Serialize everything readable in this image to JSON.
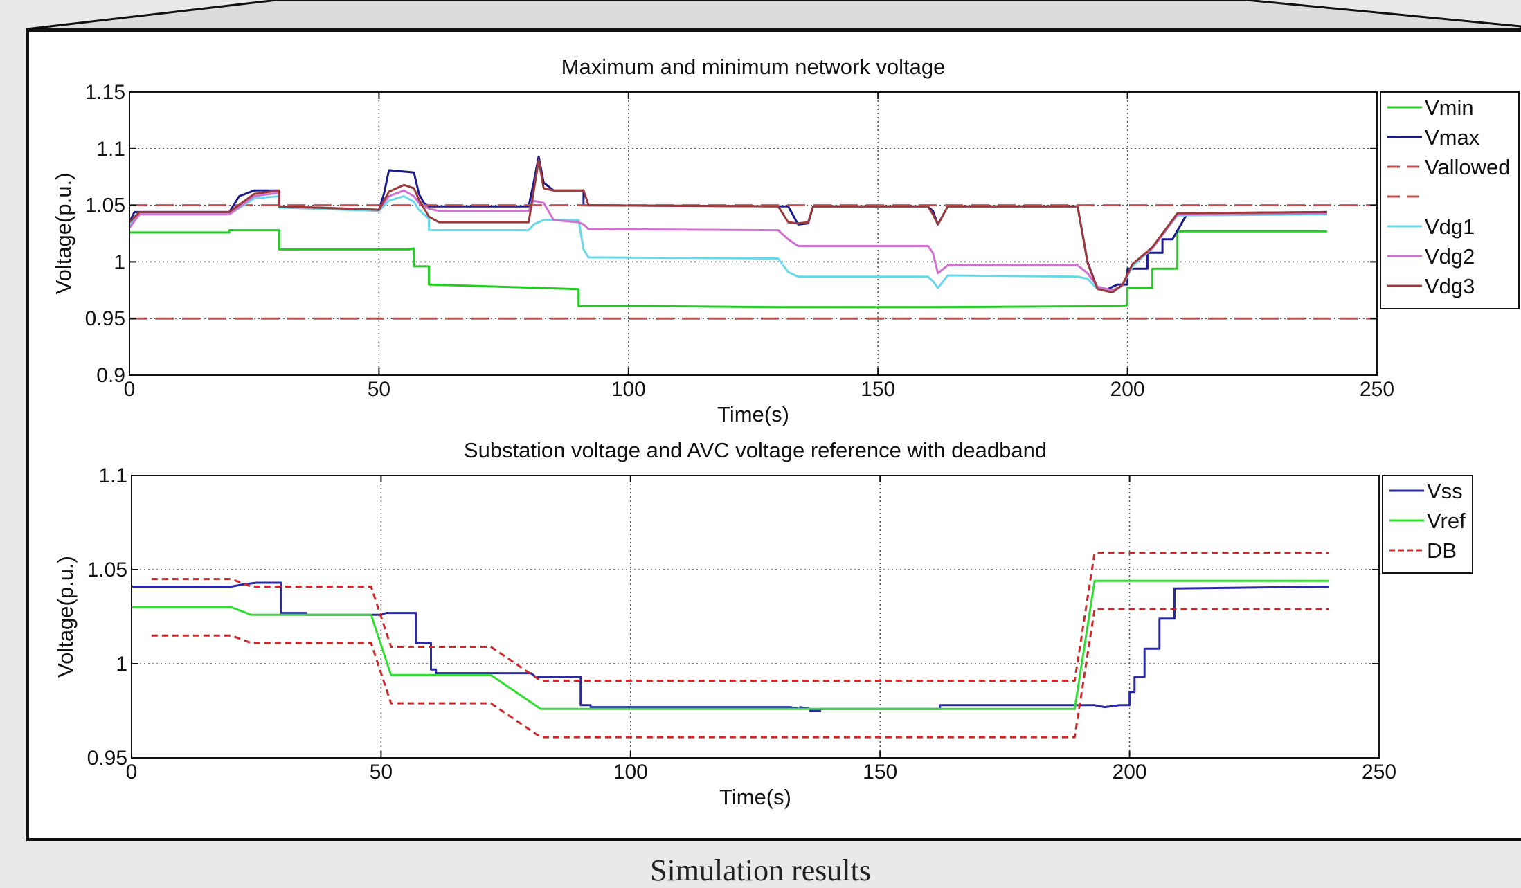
{
  "caption": "Simulation results",
  "chart_data": [
    {
      "type": "line",
      "title": "Maximum and minimum network voltage",
      "xlabel": "Time(s)",
      "ylabel": "Voltage(p.u.)",
      "xlim": [
        0,
        250
      ],
      "ylim": [
        0.9,
        1.15
      ],
      "xticks": [
        0,
        50,
        100,
        150,
        200,
        250
      ],
      "yticks": [
        0.9,
        0.95,
        1,
        1.05,
        1.1,
        1.15
      ],
      "ytick_labels": [
        "0.9",
        "0.95",
        "1",
        "1.05",
        "1.1",
        "1.15"
      ],
      "grid": true,
      "legend_position": "right",
      "legend": [
        "Vmin",
        "Vmax",
        "Vallowed",
        "",
        "Vdg1",
        "Vdg2",
        "Vdg3"
      ],
      "series": [
        {
          "name": "Vmin",
          "color": "#22cc22",
          "dash": "solid",
          "x": [
            0,
            20,
            20,
            30,
            30,
            56,
            57,
            57,
            60,
            60,
            90,
            90,
            105,
            130,
            160,
            199,
            200,
            200,
            205,
            205,
            210,
            210,
            240
          ],
          "y": [
            1.026,
            1.026,
            1.028,
            1.028,
            1.011,
            1.011,
            1.012,
            0.996,
            0.996,
            0.98,
            0.976,
            0.961,
            0.961,
            0.96,
            0.96,
            0.961,
            0.962,
            0.977,
            0.977,
            0.994,
            0.994,
            1.027,
            1.027
          ]
        },
        {
          "name": "Vmax",
          "color": "#1a1a8c",
          "dash": "solid",
          "x": [
            0,
            1,
            20,
            22,
            25,
            30,
            30,
            50,
            51,
            52,
            57,
            58,
            59,
            60,
            80,
            81,
            82,
            83,
            85,
            85,
            91,
            91,
            132,
            134,
            136,
            137,
            160,
            161,
            162,
            164,
            190,
            192,
            194,
            196,
            198,
            200,
            200,
            204,
            204,
            207,
            207,
            209,
            212,
            240
          ],
          "y": [
            1.035,
            1.044,
            1.044,
            1.058,
            1.063,
            1.063,
            1.049,
            1.046,
            1.06,
            1.081,
            1.079,
            1.06,
            1.052,
            1.049,
            1.049,
            1.07,
            1.093,
            1.07,
            1.063,
            1.063,
            1.063,
            1.05,
            1.049,
            1.033,
            1.034,
            1.049,
            1.049,
            1.045,
            1.033,
            1.049,
            1.049,
            1.0,
            0.976,
            0.976,
            0.98,
            0.98,
            0.994,
            0.994,
            1.008,
            1.008,
            1.02,
            1.02,
            1.043,
            1.044
          ]
        },
        {
          "name": "Vallowed",
          "color": "#c05050",
          "dash": "long",
          "x": [
            0,
            250
          ],
          "y": [
            1.05,
            1.05
          ]
        },
        {
          "name": "",
          "color": "#c05050",
          "dash": "long",
          "x": [
            0,
            250
          ],
          "y": [
            0.95,
            0.95
          ]
        },
        {
          "name": "Vdg1",
          "color": "#66d8e8",
          "dash": "solid",
          "x": [
            0,
            2,
            20,
            25,
            30,
            30,
            50,
            52,
            55,
            57,
            58,
            60,
            60,
            80,
            81,
            83,
            90,
            91,
            92,
            130,
            132,
            134,
            160,
            161,
            162,
            164,
            190,
            192,
            194,
            197,
            199,
            201,
            205,
            210,
            240
          ],
          "y": [
            1.032,
            1.042,
            1.042,
            1.056,
            1.058,
            1.048,
            1.045,
            1.054,
            1.058,
            1.053,
            1.046,
            1.038,
            1.028,
            1.028,
            1.033,
            1.037,
            1.037,
            1.011,
            1.004,
            1.003,
            0.991,
            0.987,
            0.987,
            0.983,
            0.977,
            0.988,
            0.987,
            0.985,
            0.976,
            0.974,
            0.979,
            0.996,
            1.012,
            1.041,
            1.042
          ]
        },
        {
          "name": "Vdg2",
          "color": "#d070d0",
          "dash": "solid",
          "x": [
            0,
            2,
            20,
            25,
            30,
            30,
            50,
            52,
            55,
            57,
            58,
            60,
            62,
            80,
            81,
            83,
            85,
            90,
            91,
            92,
            130,
            132,
            134,
            160,
            161,
            162,
            164,
            190,
            192,
            194,
            197,
            199,
            201,
            205,
            210,
            240
          ],
          "y": [
            1.03,
            1.042,
            1.042,
            1.058,
            1.061,
            1.049,
            1.046,
            1.058,
            1.063,
            1.058,
            1.052,
            1.047,
            1.045,
            1.045,
            1.054,
            1.052,
            1.037,
            1.035,
            1.033,
            1.029,
            1.028,
            1.02,
            1.014,
            1.014,
            1.008,
            0.99,
            0.997,
            0.997,
            0.99,
            0.978,
            0.975,
            0.979,
            0.998,
            1.012,
            1.042,
            1.043
          ]
        },
        {
          "name": "Vdg3",
          "color": "#9b3a3a",
          "dash": "solid",
          "x": [
            0,
            2,
            20,
            25,
            30,
            30,
            50,
            52,
            55,
            57,
            58,
            60,
            62,
            80,
            81,
            82,
            83,
            85,
            91,
            92,
            130,
            132,
            134,
            136,
            137,
            160,
            161,
            162,
            164,
            190,
            192,
            194,
            197,
            199,
            201,
            205,
            210,
            240
          ],
          "y": [
            1.035,
            1.044,
            1.044,
            1.06,
            1.063,
            1.049,
            1.046,
            1.062,
            1.068,
            1.065,
            1.055,
            1.04,
            1.035,
            1.035,
            1.062,
            1.09,
            1.065,
            1.063,
            1.063,
            1.05,
            1.049,
            1.035,
            1.034,
            1.035,
            1.049,
            1.049,
            1.042,
            1.033,
            1.049,
            1.049,
            0.999,
            0.976,
            0.973,
            0.98,
            0.998,
            1.013,
            1.043,
            1.044
          ]
        }
      ]
    },
    {
      "type": "line",
      "title": "Substation voltage and AVC voltage reference with deadband",
      "xlabel": "Time(s)",
      "ylabel": "Voltage(p.u.)",
      "xlim": [
        0,
        250
      ],
      "ylim": [
        0.95,
        1.1
      ],
      "xticks": [
        0,
        50,
        100,
        150,
        200,
        250
      ],
      "yticks": [
        0.95,
        1,
        1.05,
        1.1
      ],
      "ytick_labels": [
        "0.95",
        "1",
        "1.05",
        "1.1"
      ],
      "grid": true,
      "legend_position": "top-right",
      "legend": [
        "Vss",
        "Vref",
        "DB"
      ],
      "series": [
        {
          "name": "Vss",
          "color": "#2a2aa8",
          "dash": "solid",
          "x": [
            0,
            20,
            22,
            25,
            30,
            30,
            35,
            35,
            50,
            51,
            57,
            57,
            60,
            60,
            61,
            61,
            80,
            81,
            90,
            90,
            92,
            92,
            132,
            134,
            134,
            136,
            136,
            138,
            138,
            160,
            162,
            162,
            190,
            193,
            195,
            198,
            199,
            200,
            200,
            201,
            201,
            203,
            203,
            206,
            206,
            209,
            209,
            240
          ],
          "y": [
            1.041,
            1.041,
            1.042,
            1.043,
            1.043,
            1.027,
            1.027,
            1.026,
            1.026,
            1.027,
            1.027,
            1.011,
            1.011,
            0.997,
            0.997,
            0.995,
            0.995,
            0.993,
            0.993,
            0.978,
            0.978,
            0.977,
            0.977,
            0.976,
            0.977,
            0.976,
            0.975,
            0.975,
            0.976,
            0.976,
            0.976,
            0.978,
            0.978,
            0.978,
            0.977,
            0.978,
            0.978,
            0.978,
            0.985,
            0.985,
            0.993,
            0.993,
            1.008,
            1.008,
            1.024,
            1.024,
            1.04,
            1.041
          ]
        },
        {
          "name": "Vref",
          "color": "#33dd33",
          "dash": "solid",
          "x": [
            0,
            20,
            24,
            48,
            52,
            72,
            82,
            189,
            193,
            240
          ],
          "y": [
            1.03,
            1.03,
            1.026,
            1.026,
            0.994,
            0.994,
            0.976,
            0.976,
            1.044,
            1.044
          ]
        },
        {
          "name": "DB",
          "color": "#cc2a2a",
          "dash": "short",
          "x": [
            4,
            20,
            24,
            48,
            52,
            72,
            82,
            189,
            193,
            240
          ],
          "y": [
            1.045,
            1.045,
            1.041,
            1.041,
            1.009,
            1.009,
            0.991,
            0.991,
            1.059,
            1.059
          ]
        },
        {
          "name": "",
          "color": "#cc2a2a",
          "dash": "short",
          "x": [
            4,
            20,
            24,
            48,
            52,
            72,
            82,
            189,
            193,
            240
          ],
          "y": [
            1.015,
            1.015,
            1.011,
            1.011,
            0.979,
            0.979,
            0.961,
            0.961,
            1.029,
            1.029
          ]
        }
      ]
    }
  ]
}
